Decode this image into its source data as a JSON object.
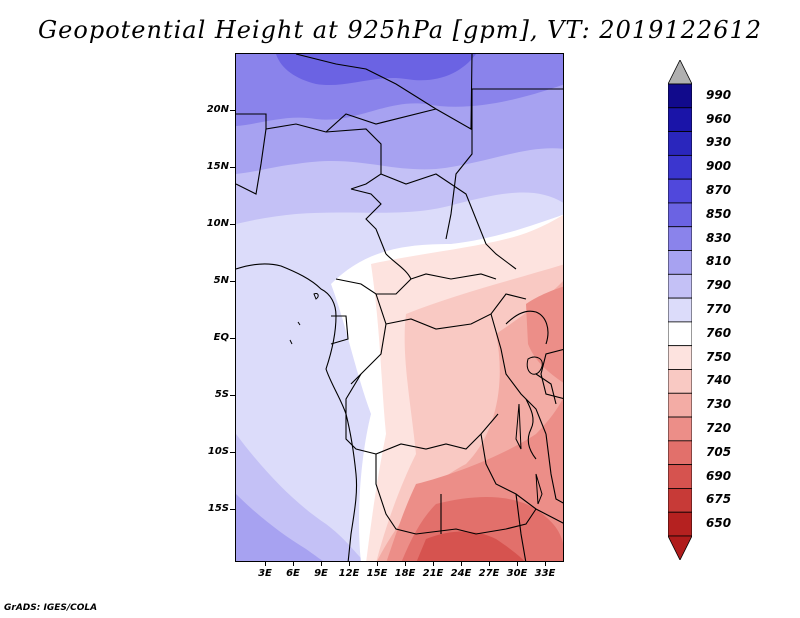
{
  "title": "Geopotential Height at 925hPa [gpm], VT: 2019122612",
  "footer": "GrADS: IGES/COLA",
  "map": {
    "lat_labels": [
      "20N",
      "15N",
      "10N",
      "5N",
      "EQ",
      "5S",
      "10S",
      "15S"
    ],
    "lon_labels": [
      "3E",
      "6E",
      "9E",
      "12E",
      "15E",
      "18E",
      "21E",
      "24E",
      "27E",
      "30E",
      "33E"
    ]
  },
  "colorbar": {
    "levels": [
      "990",
      "960",
      "930",
      "900",
      "870",
      "850",
      "830",
      "810",
      "790",
      "770",
      "760",
      "750",
      "740",
      "730",
      "720",
      "705",
      "690",
      "675",
      "650"
    ],
    "colors": [
      "#110a8c",
      "#1a14a8",
      "#2a26bd",
      "#3b36cf",
      "#5048dc",
      "#6b63e3",
      "#8a83eb",
      "#a7a2f1",
      "#c4c1f6",
      "#dcdcfa",
      "#ffffff",
      "#fde3df",
      "#f9c9c3",
      "#f3aca5",
      "#ec8e88",
      "#e2706b",
      "#d6534f",
      "#c73a37",
      "#b52120"
    ],
    "over_color": "#b0b0b0",
    "under_color": "#b01c1c"
  }
}
